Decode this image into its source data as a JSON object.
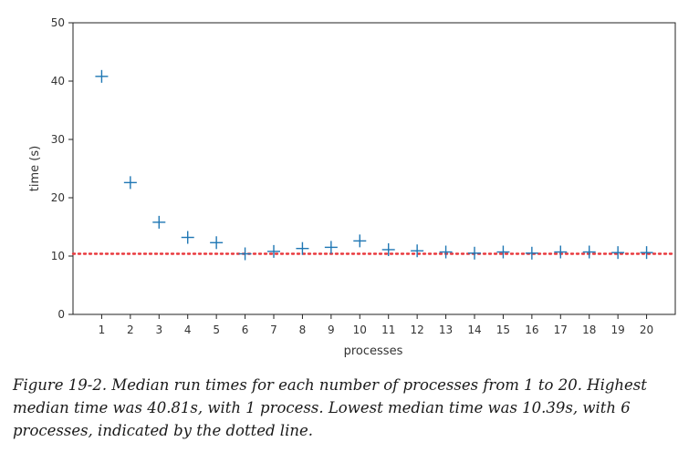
{
  "chart_data": {
    "type": "scatter",
    "title": "",
    "xlabel": "processes",
    "ylabel": "time (s)",
    "xlim": [
      0,
      21
    ],
    "ylim": [
      0,
      50
    ],
    "x_ticks": [
      1,
      2,
      3,
      4,
      5,
      6,
      7,
      8,
      9,
      10,
      11,
      12,
      13,
      14,
      15,
      16,
      17,
      18,
      19,
      20
    ],
    "y_ticks": [
      0,
      10,
      20,
      30,
      40,
      50
    ],
    "grid": false,
    "marker": "plus",
    "series": [
      {
        "x": [
          1,
          2,
          3,
          4,
          5,
          6,
          7,
          8,
          9,
          10,
          11,
          12,
          13,
          14,
          15,
          16,
          17,
          18,
          19,
          20
        ],
        "values": [
          40.81,
          22.6,
          15.8,
          13.2,
          12.3,
          10.39,
          10.8,
          11.3,
          11.5,
          12.6,
          11.1,
          10.9,
          10.7,
          10.5,
          10.7,
          10.5,
          10.7,
          10.7,
          10.6,
          10.6
        ],
        "color": "#1f77b4"
      }
    ],
    "reference_line": {
      "y": 10.39,
      "style": "dotted",
      "color": "#e8383d"
    }
  },
  "caption": "Figure 19-2. Median run times for each number of processes from 1 to 20. Highest median time was 40.81s, with 1 process. Lowest median time was 10.39s, with 6 processes, indicated by the dotted line."
}
